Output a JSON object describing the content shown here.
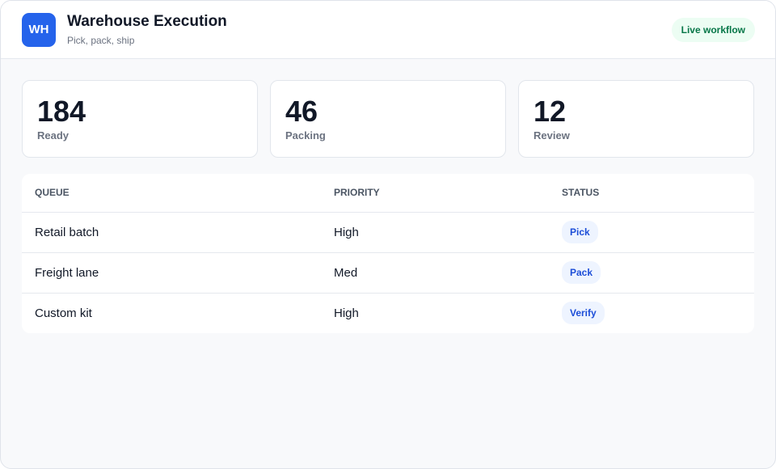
{
  "header": {
    "logo": "WH",
    "title": "Warehouse Execution",
    "subtitle": "Pick, pack, ship",
    "badge": "Live workflow"
  },
  "stats": [
    {
      "value": 184,
      "label": "Ready"
    },
    {
      "value": 46,
      "label": "Packing"
    },
    {
      "value": 12,
      "label": "Review"
    }
  ],
  "table": {
    "columns": [
      "QUEUE",
      "PRIORITY",
      "STATUS"
    ],
    "rows": [
      [
        "Retail batch",
        "High",
        "Pick"
      ],
      [
        "Freight lane",
        "Med",
        "Pack"
      ],
      [
        "Custom kit",
        "High",
        "Verify"
      ]
    ]
  }
}
